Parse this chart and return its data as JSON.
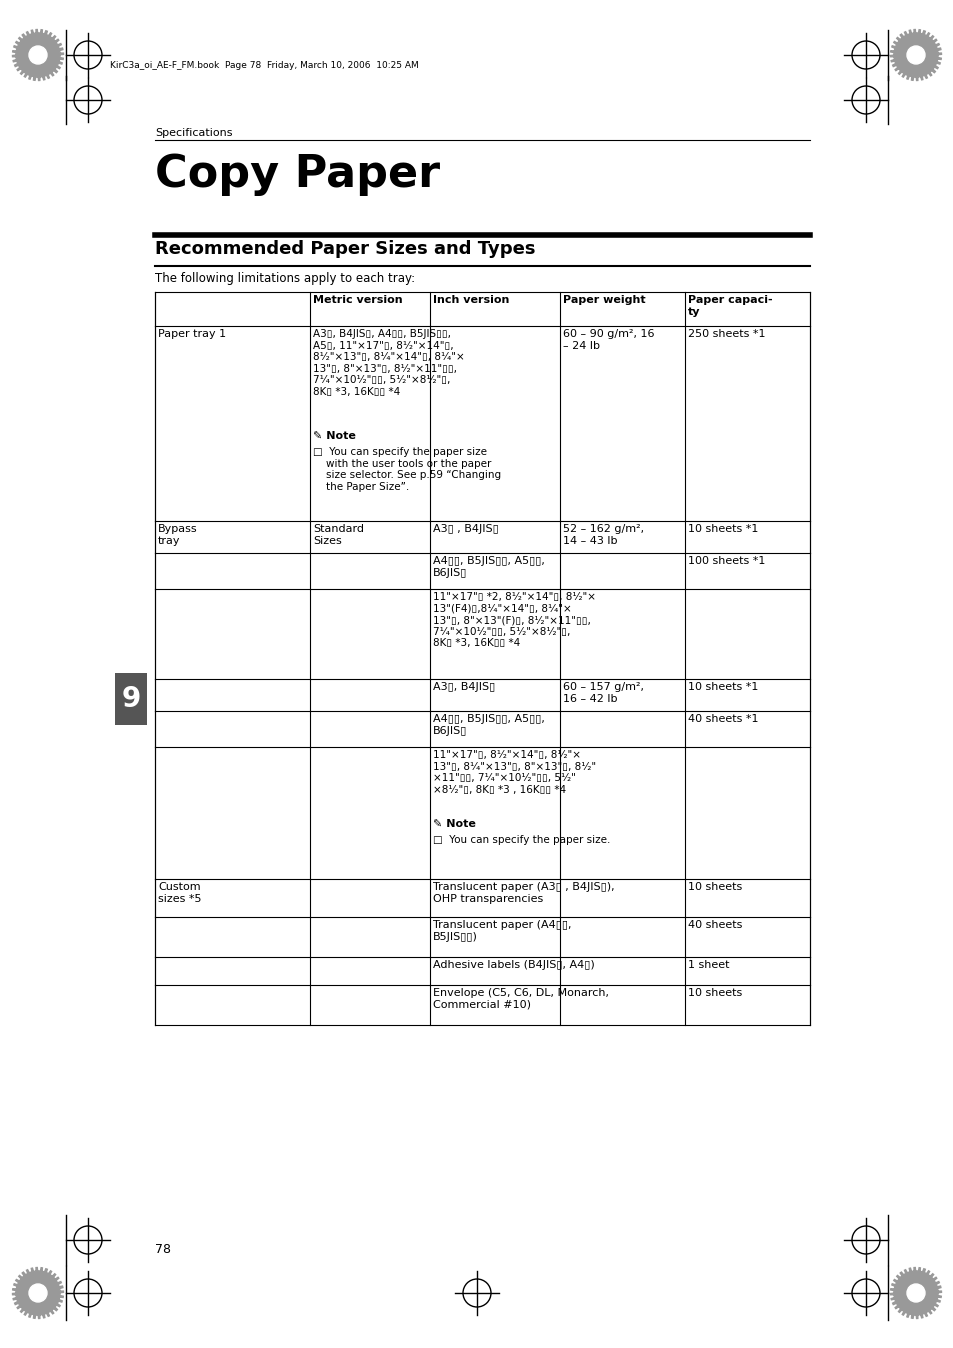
{
  "bg_color": "#ffffff",
  "page_num": "78",
  "header_text": "KirC3a_oi_AE-F_FM.book  Page 78  Friday, March 10, 2006  10:25 AM",
  "section_label": "Specifications",
  "title": "Copy Paper",
  "subtitle": "Recommended Paper Sizes and Types",
  "intro": "The following limitations apply to each tray:",
  "table_headers": [
    "",
    "Metric version",
    "Inch version",
    "Paper weight",
    "Paper capaci-\nty"
  ],
  "col_bounds": [
    155,
    310,
    430,
    560,
    685,
    810
  ],
  "pt1_col2": "A3▯, B4JIS▯, A4▯▯, B5JIS▯▯,\nA5▯, 11\"×17\"▯, 8¹⁄₂\"×14\"▯,\n8¹⁄₂\"×13\"▯, 8¹⁄₄\"×14\"▯, 8¹⁄₄\"×\n13\"▯, 8\"×13\"▯, 8¹⁄₂\"×11\"▯▯,\n7¹⁄₄\"×10¹⁄₂\"▯▯, 5¹⁄₂\"×8¹⁄₂\"▯,\n8K▯ *3, 16K▯▯ *4",
  "pt1_weight": "60 – 90 g/m², 16\n– 24 lb",
  "pt1_capacity": "250 sheets *1",
  "pt1_note": "✎ Note\n□  You can specify the paper size\n    with the user tools or the paper\n    size selector. See p.59 “Changing\n    the Paper Size”.",
  "by_sr1_col3": "A3▯ , B4JIS▯",
  "by_sr1_weight": "52 – 162 g/m²,\n14 – 43 lb",
  "by_sr1_cap": "10 sheets *1",
  "by_sr2_col3": "A4▯▯, B5JIS▯▯, A5▯▯,\nB6JIS▯",
  "by_sr2_cap": "100 sheets *1",
  "by_sr3_col3": "11\"×17\"▯ *2, 8¹⁄₂\"×14\"▯, 8¹⁄₂\"×\n13\"(F4)▯,8¹⁄₄\"×14\"▯, 8¹⁄₄\"×\n13\"▯, 8\"×13\"(F)▯, 8¹⁄₂\"×11\"▯▯,\n7¹⁄₄\"×10¹⁄₂\"▯▯, 5¹⁄₂\"×8¹⁄₂\"▯,\n8K▯ *3, 16K▯▯ *4",
  "by_sr4_col3": "A3▯, B4JIS▯",
  "by_sr4_weight": "60 – 157 g/m²,\n16 – 42 lb",
  "by_sr4_cap": "10 sheets *1",
  "by_sr5_col3": "A4▯▯, B5JIS▯▯, A5▯▯,\nB6JIS▯",
  "by_sr5_cap": "40 sheets *1",
  "by_sr6_col3": "11\"×17\"▯, 8¹⁄₂\"×14\"▯, 8¹⁄₂\"×\n13\"▯, 8¹⁄₄\"×13\"▯, 8\"×13\"▯, 8¹⁄₂\"\n×11\"▯▯, 7¹⁄₄\"×10¹⁄₂\"▯▯, 5¹⁄₂\"\n×8¹⁄₂\"▯, 8K▯ *3 , 16K▯▯ *4",
  "by_sr6_note": "✎ Note\n□  You can specify the paper size.",
  "cs_rows": [
    {
      "col2": "Translucent paper (A3▯ , B4JIS▯),\nOHP transparencies",
      "col4": "10 sheets"
    },
    {
      "col2": "Translucent paper (A4▯▯,\nB5JIS▯▯)",
      "col4": "40 sheets"
    },
    {
      "col2": "Adhesive labels (B4JIS▯, A4▯)",
      "col4": "1 sheet"
    },
    {
      "col2": "Envelope (C5, C6, DL, Monarch,\nCommercial #10)",
      "col4": "10 sheets"
    }
  ]
}
